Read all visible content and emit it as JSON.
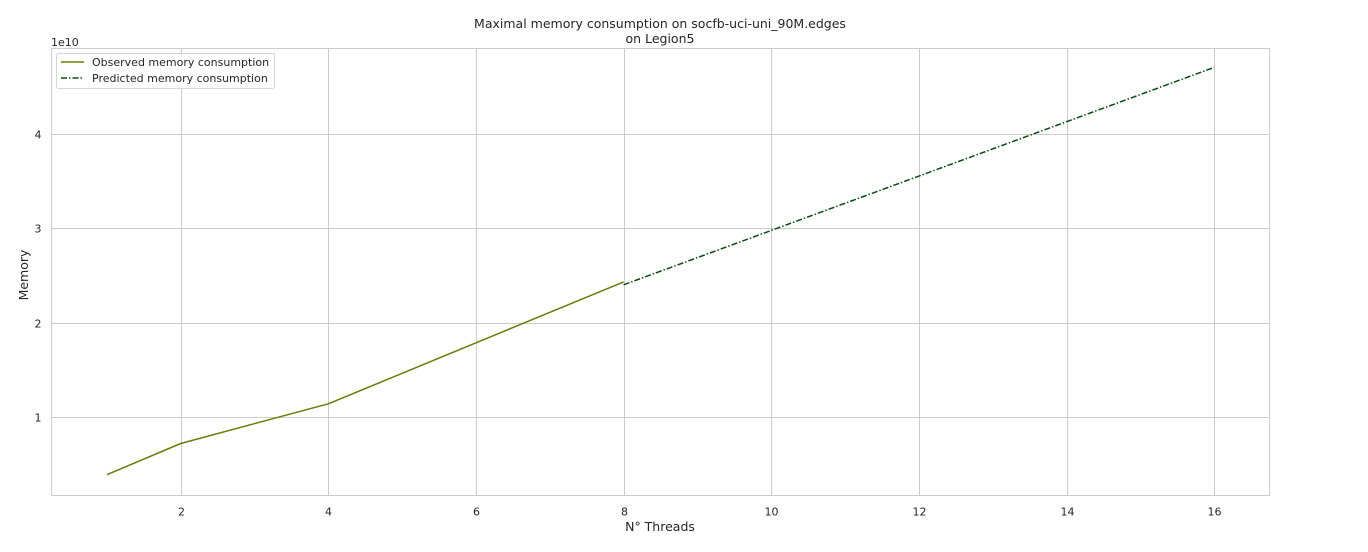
{
  "chart_data": {
    "type": "line",
    "title": [
      "Maximal memory consumption on socfb-uci-uni_90M.edges",
      "on Legion5"
    ],
    "xlabel": "N° Threads",
    "ylabel": "Memory",
    "y_offset_label": "1e10",
    "xlim": [
      0.25,
      16.75
    ],
    "ylim": [
      1700000000.0,
      49000000000.0
    ],
    "x_ticks": [
      2,
      4,
      6,
      8,
      10,
      12,
      14,
      16
    ],
    "y_ticks": [
      10000000000.0,
      20000000000.0,
      30000000000.0,
      40000000000.0
    ],
    "x_tick_labels": [
      "2",
      "4",
      "6",
      "8",
      "10",
      "12",
      "14",
      "16"
    ],
    "y_tick_labels": [
      "1",
      "2",
      "3",
      "4"
    ],
    "grid": true,
    "legend_position": "top-left",
    "series": [
      {
        "name": "Observed memory consumption",
        "color": "#6b7a0c",
        "style": "solid",
        "x": [
          1,
          2,
          4,
          8
        ],
        "y": [
          3900000000.0,
          7200000000.0,
          11400000000.0,
          24300000000.0
        ]
      },
      {
        "name": "Predicted memory consumption",
        "color": "#0b4a14",
        "style": "dashdot",
        "x": [
          8,
          16
        ],
        "y": [
          24000000000.0,
          47000000000.0
        ]
      }
    ]
  }
}
